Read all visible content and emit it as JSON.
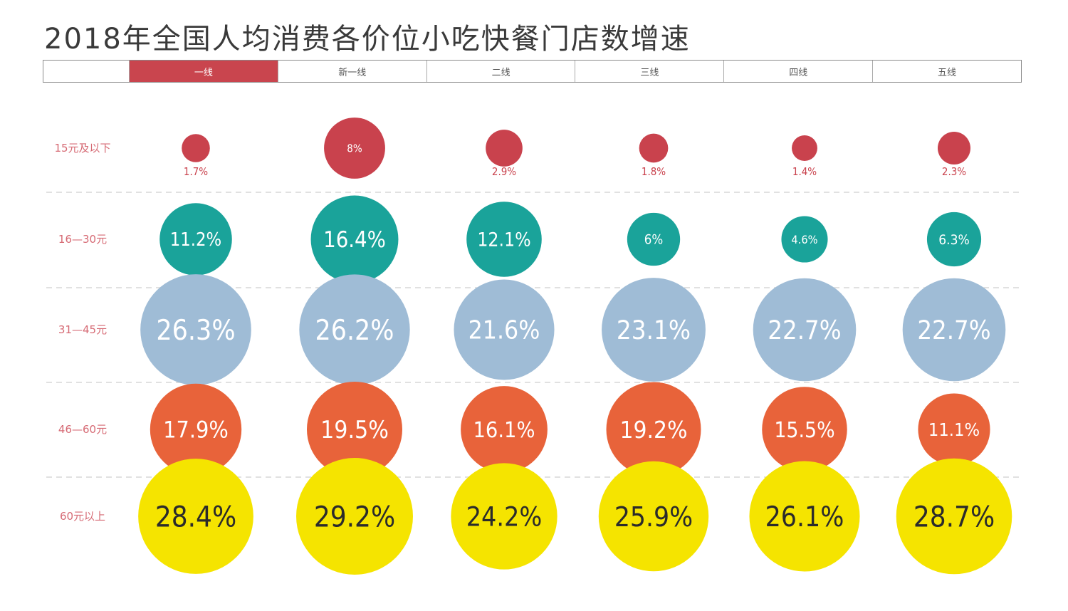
{
  "title": "2018年全国人均消费各价位小吃快餐门店数增速",
  "tabs": [
    "一线",
    "新一线",
    "二线",
    "三线",
    "四线",
    "五线"
  ],
  "active_tab": "一线",
  "colors": {
    "active_tab": "#c9454e",
    "row_label": "#d66a74",
    "grid": "#cfcfcf"
  },
  "chart_data": {
    "type": "bubble",
    "title": "2018年全国人均消费各价位小吃快餐门店数增速",
    "categories": [
      "一线",
      "新一线",
      "二线",
      "三线",
      "四线",
      "五线"
    ],
    "series": [
      {
        "name": "15元及以下",
        "color": "#c9424d",
        "text_color": "#c9424d",
        "label_outside": true,
        "values": [
          1.7,
          8,
          2.9,
          1.8,
          1.4,
          2.3
        ],
        "labels": [
          "1.7%",
          "8%",
          "2.9%",
          "1.8%",
          "1.4%",
          "2.3%"
        ]
      },
      {
        "name": "16—30元",
        "color": "#1aa39a",
        "text_color": "#ffffff",
        "values": [
          11.2,
          16.4,
          12.1,
          6,
          4.6,
          6.3
        ],
        "labels": [
          "11.2%",
          "16.4%",
          "12.1%",
          "6%",
          "4.6%",
          "6.3%"
        ]
      },
      {
        "name": "31—45元",
        "color": "#9fbcd6",
        "text_color": "#ffffff",
        "values": [
          26.3,
          26.2,
          21.6,
          23.1,
          22.7,
          22.7
        ],
        "labels": [
          "26.3%",
          "26.2%",
          "21.6%",
          "23.1%",
          "22.7%",
          "22.7%"
        ]
      },
      {
        "name": "46—60元",
        "color": "#e8633a",
        "text_color": "#ffffff",
        "values": [
          17.9,
          19.5,
          16.1,
          19.2,
          15.5,
          11.1
        ],
        "labels": [
          "17.9%",
          "19.5%",
          "16.1%",
          "19.2%",
          "15.5%",
          "11.1%"
        ]
      },
      {
        "name": "60元以上",
        "color": "#f5e400",
        "text_color": "#2b2b2b",
        "values": [
          28.4,
          29.2,
          24.2,
          25.9,
          26.1,
          28.7
        ],
        "labels": [
          "28.4%",
          "29.2%",
          "24.2%",
          "25.9%",
          "26.1%",
          "28.7%"
        ]
      }
    ],
    "grid": true
  }
}
